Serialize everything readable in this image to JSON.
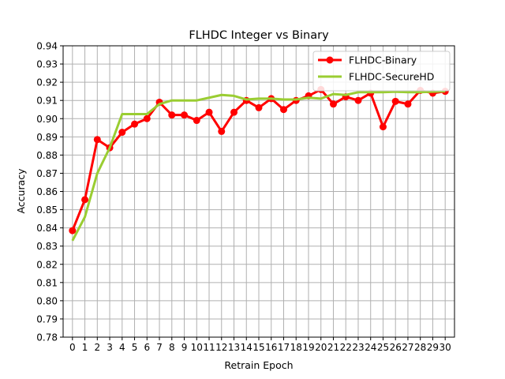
{
  "chart_data": {
    "type": "line",
    "title": "FLHDC Integer vs Binary",
    "xlabel": "Retrain Epoch",
    "ylabel": "Accuracy",
    "xlim": [
      -0.75,
      30.75
    ],
    "ylim": [
      0.78,
      0.94
    ],
    "grid": true,
    "legend_position": "upper right",
    "x": [
      0,
      1,
      2,
      3,
      4,
      5,
      6,
      7,
      8,
      9,
      10,
      11,
      12,
      13,
      14,
      15,
      16,
      17,
      18,
      19,
      20,
      21,
      22,
      23,
      24,
      25,
      26,
      27,
      28,
      29,
      30
    ],
    "x_ticks": [
      "0",
      "1",
      "2",
      "3",
      "4",
      "5",
      "6",
      "7",
      "8",
      "9",
      "10",
      "11",
      "12",
      "13",
      "14",
      "15",
      "16",
      "17",
      "18",
      "19",
      "20",
      "21",
      "22",
      "23",
      "24",
      "25",
      "26",
      "27",
      "28",
      "29",
      "30"
    ],
    "y_ticks": [
      "0.78",
      "0.79",
      "0.80",
      "0.81",
      "0.82",
      "0.83",
      "0.84",
      "0.85",
      "0.86",
      "0.87",
      "0.88",
      "0.89",
      "0.90",
      "0.91",
      "0.92",
      "0.93",
      "0.94"
    ],
    "series": [
      {
        "name": "FLHDC-Binary",
        "color": "#ff0000",
        "marker": "circle",
        "values": [
          0.8385,
          0.8555,
          0.8885,
          0.884,
          0.8925,
          0.897,
          0.9,
          0.909,
          0.902,
          0.902,
          0.899,
          0.9035,
          0.893,
          0.9035,
          0.91,
          0.906,
          0.911,
          0.905,
          0.91,
          0.9125,
          0.916,
          0.908,
          0.912,
          0.91,
          0.914,
          0.8955,
          0.9095,
          0.908,
          0.9155,
          0.914,
          0.915
        ]
      },
      {
        "name": "FLHDC-SecureHD",
        "color": "#9acd32",
        "marker": "none",
        "values": [
          0.833,
          0.846,
          0.87,
          0.884,
          0.9025,
          0.9025,
          0.9025,
          0.908,
          0.91,
          0.91,
          0.91,
          0.9115,
          0.913,
          0.9125,
          0.9105,
          0.911,
          0.911,
          0.9105,
          0.9105,
          0.9115,
          0.911,
          0.9135,
          0.913,
          0.9145,
          0.9145,
          0.9145,
          0.9148,
          0.9145,
          0.9145,
          0.9148,
          0.915
        ]
      }
    ]
  }
}
